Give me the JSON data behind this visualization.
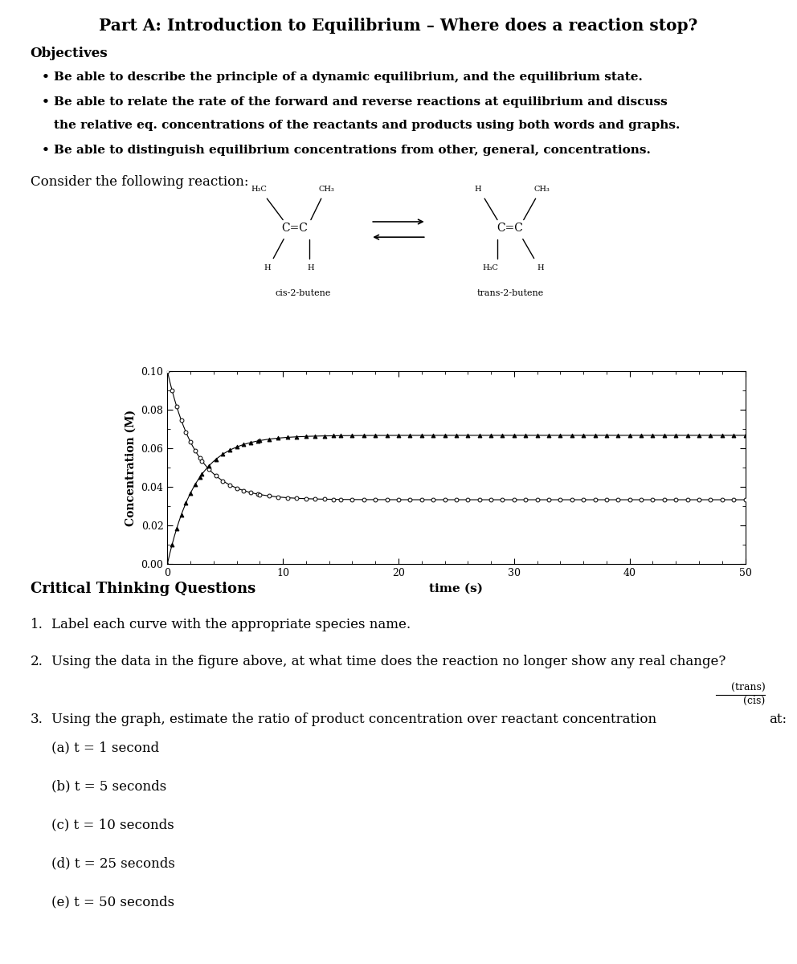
{
  "title": "Part A: Introduction to Equilibrium – Where does a reaction stop?",
  "objectives_header": "Objectives",
  "obj1": "Be able to describe the principle of a dynamic equilibrium, and the equilibrium state.",
  "obj2a": "Be able to relate the rate of the forward and reverse reactions at equilibrium and discuss",
  "obj2b": "the relative eq. concentrations of the reactants and products using both words and graphs.",
  "obj3": "Be able to distinguish equilibrium concentrations from other, general, concentrations.",
  "consider_text": "Consider the following reaction:",
  "graph_xlabel": "time (s)",
  "graph_ylabel": "Concentration (M)",
  "xlim": [
    0,
    50
  ],
  "ylim": [
    0.0,
    0.1
  ],
  "yticks": [
    0.0,
    0.02,
    0.04,
    0.06,
    0.08,
    0.1
  ],
  "xticks": [
    0,
    10,
    20,
    30,
    40,
    50
  ],
  "cis_equilibrium": 0.0333,
  "trans_equilibrium": 0.0667,
  "cis_initial": 0.1,
  "trans_initial": 0.0,
  "k_approach": 0.4,
  "background_color": "#ffffff",
  "ctq_header": "Critical Thinking Questions",
  "q1": "Label each curve with the appropriate species name.",
  "q2": "Using the data in the figure above, at what time does the reaction no longer show any real change?",
  "q3_intro": "Using the graph, estimate the ratio of product concentration over reactant concentration",
  "q3_at": "at:",
  "q3_trans": "(trans)",
  "q3_cis": "(cis)",
  "q3a": "(a) t = 1 second",
  "q3b": "(b) t = 5 seconds",
  "q3c": "(c) t = 10 seconds",
  "q3d": "(d) t = 25 seconds",
  "q3e": "(e) t = 50 seconds"
}
